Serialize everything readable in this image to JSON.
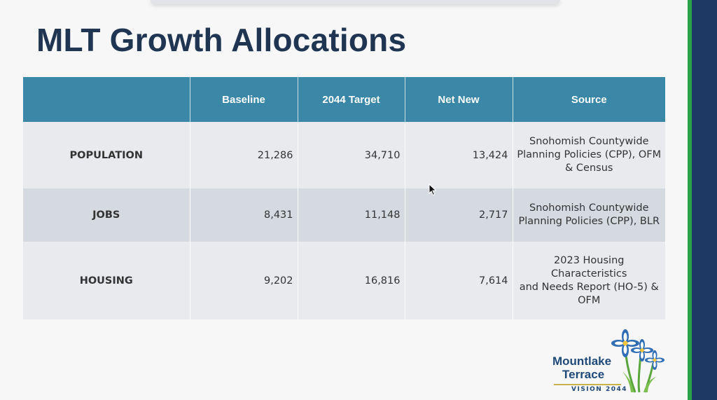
{
  "slide": {
    "title": "MLT Growth Allocations"
  },
  "table": {
    "headers": [
      "",
      "Baseline",
      "2044 Target",
      "Net New",
      "Source"
    ],
    "rows": [
      {
        "label": "POPULATION",
        "baseline": "21,286",
        "target": "34,710",
        "net_new": "13,424",
        "source_lines": [
          "Snohomish Countywide",
          "Planning Policies (CPP), OFM",
          "& Census"
        ]
      },
      {
        "label": "JOBS",
        "baseline": "8,431",
        "target": "11,148",
        "net_new": "2,717",
        "source_lines": [
          "Snohomish Countywide",
          "Planning Policies (CPP), BLR"
        ]
      },
      {
        "label": "HOUSING",
        "baseline": "9,202",
        "target": "16,816",
        "net_new": "7,614",
        "source_lines": [
          "2023 Housing Characteristics",
          "and Needs Report (HO-5) &",
          "OFM"
        ]
      }
    ]
  },
  "logo": {
    "line1": "Mountlake",
    "line2": "Terrace",
    "tagline": "VISION 2044"
  },
  "colors": {
    "title": "#1f3552",
    "header_bg": "#3a87a8",
    "row_light": "#e8eaee",
    "row_dark": "#d5dae1",
    "side_green": "#2aa24a",
    "side_blue": "#1e3a64"
  },
  "icons": [
    "mouse-cursor-icon",
    "flower-icon"
  ]
}
